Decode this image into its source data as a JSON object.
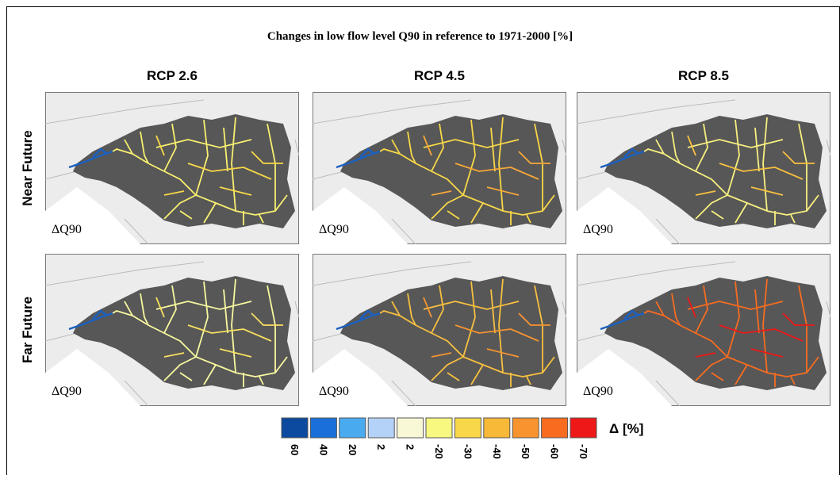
{
  "title": "Changes in low flow level Q90 in reference to 1971-2000 [%]",
  "columns": [
    "RCP 2.6",
    "RCP 4.5",
    "RCP 8.5"
  ],
  "rows": [
    "Near Future",
    "Far Future"
  ],
  "panel_label": "ΔQ90",
  "legend": {
    "unit": "Δ [%]",
    "items": [
      {
        "label": "60",
        "color": "#0b4a9e"
      },
      {
        "label": "40",
        "color": "#1a70d8"
      },
      {
        "label": "20",
        "color": "#4aaaf0"
      },
      {
        "label": "2",
        "color": "#b4d2f8"
      },
      {
        "label": "2",
        "color": "#f8f8d6"
      },
      {
        "label": "-20",
        "color": "#f8f880"
      },
      {
        "label": "-30",
        "color": "#f8d848"
      },
      {
        "label": "-40",
        "color": "#f8b838"
      },
      {
        "label": "-50",
        "color": "#f89430"
      },
      {
        "label": "-60",
        "color": "#f86c20"
      },
      {
        "label": "-70",
        "color": "#ee1818"
      }
    ]
  }
}
